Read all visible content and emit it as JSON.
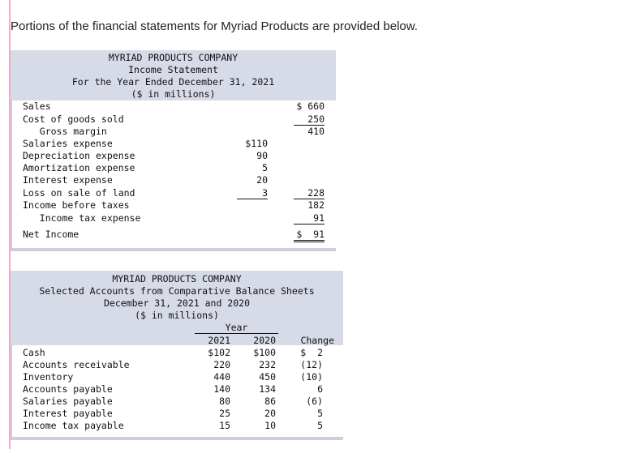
{
  "intro": "Portions of the financial statements for Myriad Products are provided below.",
  "income": {
    "header": [
      "MYRIAD PRODUCTS COMPANY",
      "Income Statement",
      "For the Year Ended December 31, 2021",
      "($ in millions)"
    ],
    "rows": [
      {
        "label": "Sales",
        "c1": "",
        "c2": "$ 660"
      },
      {
        "label": "Cost of goods sold",
        "c1": "",
        "c2": "250"
      },
      {
        "label": "   Gross margin",
        "c1": "",
        "c2": "410"
      },
      {
        "label": "Salaries expense",
        "c1": "$110",
        "c2": ""
      },
      {
        "label": "Depreciation expense",
        "c1": "90",
        "c2": ""
      },
      {
        "label": "Amortization expense",
        "c1": "5",
        "c2": ""
      },
      {
        "label": "Interest expense",
        "c1": "20",
        "c2": ""
      },
      {
        "label": "Loss on sale of land",
        "c1": "3",
        "c2": "228"
      },
      {
        "label": "Income before taxes",
        "c1": "",
        "c2": "182"
      },
      {
        "label": "   Income tax expense",
        "c1": "",
        "c2": "91"
      },
      {
        "label": "Net Income",
        "c1": "",
        "c2": "$  91"
      }
    ]
  },
  "balance": {
    "header": [
      "MYRIAD PRODUCTS COMPANY",
      "Selected Accounts from Comparative Balance Sheets",
      "December 31, 2021 and 2020",
      "($ in millions)"
    ],
    "year_label": "Year",
    "col_heads": [
      "2021",
      "2020",
      "Change"
    ],
    "rows": [
      {
        "label": "Cash",
        "v1": "$102",
        "v2": "$100",
        "v3": "$  2"
      },
      {
        "label": "Accounts receivable",
        "v1": "220",
        "v2": "232",
        "v3": "(12)"
      },
      {
        "label": "Inventory",
        "v1": "440",
        "v2": "450",
        "v3": "(10)"
      },
      {
        "label": "Accounts payable",
        "v1": "140",
        "v2": "134",
        "v3": "6"
      },
      {
        "label": "Salaries payable",
        "v1": "80",
        "v2": "86",
        "v3": "(6)"
      },
      {
        "label": "Interest payable",
        "v1": "25",
        "v2": "20",
        "v3": "5"
      },
      {
        "label": "Income tax payable",
        "v1": "15",
        "v2": "10",
        "v3": "5"
      }
    ]
  }
}
